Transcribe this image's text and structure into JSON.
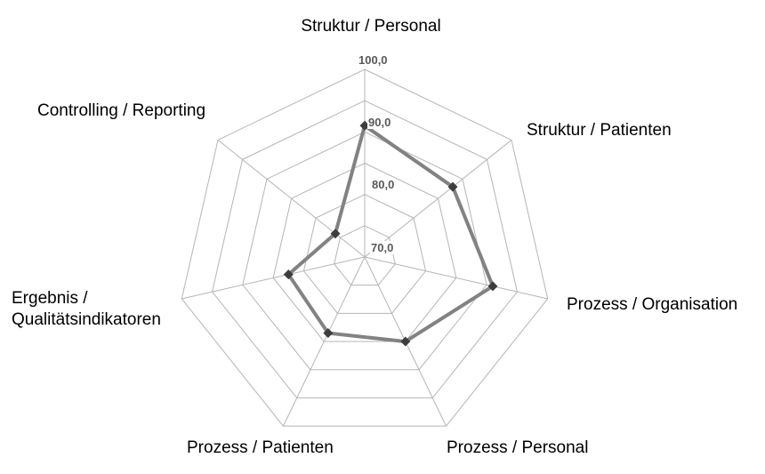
{
  "chart_data": {
    "type": "radar",
    "title": "",
    "categories": [
      "Struktur / Personal",
      "Struktur / Patienten",
      "Prozess / Organisation",
      "Prozess / Personal",
      "Prozess / Patienten",
      "Ergebnis / Qualitätsindikatoren",
      "Controlling / Reporting"
    ],
    "values": [
      91,
      88,
      91,
      85,
      83.5,
      82.5,
      76
    ],
    "radial_axis": {
      "min": 70,
      "max": 100,
      "grid_step": 5,
      "tick_values": [
        100,
        90,
        80,
        70
      ],
      "tick_labels": [
        "100,0",
        "90,0",
        "80,0",
        "70,0"
      ]
    },
    "grid": true,
    "legend": false,
    "colors": {
      "gridline": "#b5b5b5",
      "series_line": "#828282",
      "marker": "#3d3d3d",
      "tick_text": "#595959",
      "label_text": "#000000",
      "background": "#ffffff"
    }
  }
}
